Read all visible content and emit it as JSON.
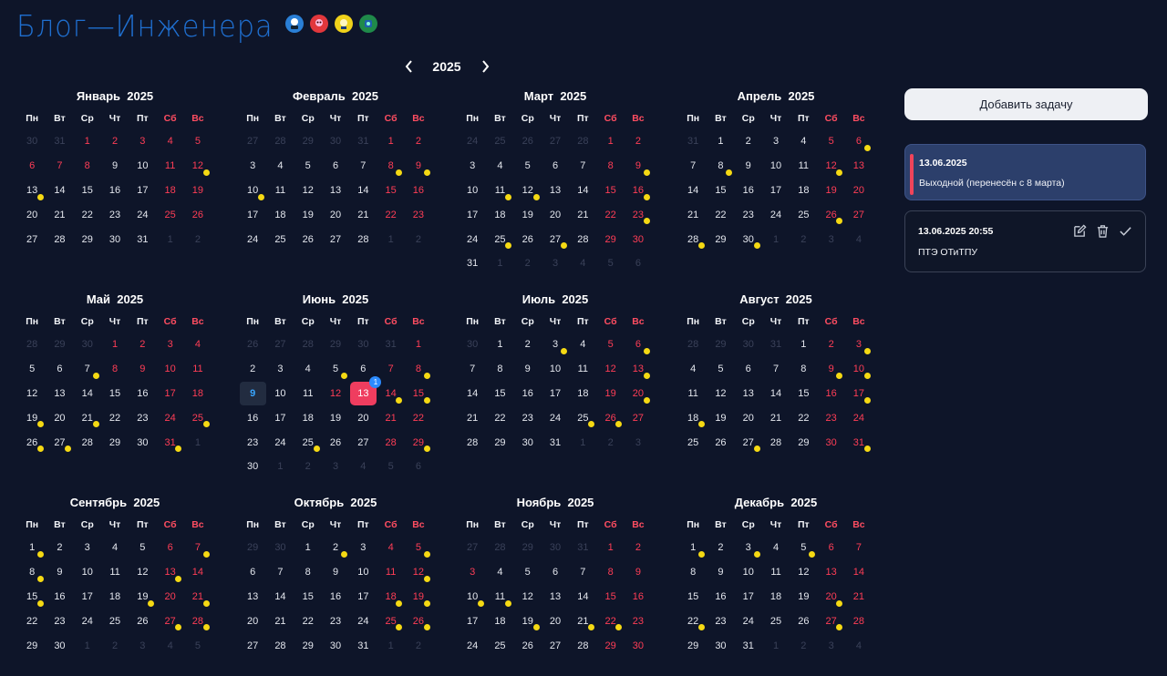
{
  "brand": {
    "title": "Блог—Инженера"
  },
  "year_nav": {
    "year": "2025"
  },
  "weekday_headers": [
    "Пн",
    "Вт",
    "Ср",
    "Чт",
    "Пт",
    "Сб",
    "Вс"
  ],
  "months": [
    {
      "title": "Январь  2025",
      "first_weekday": 2,
      "days": 31,
      "prev_days": 31,
      "dots": [
        12,
        13
      ],
      "extra_holidays": [
        1,
        2,
        3,
        6,
        7,
        8
      ]
    },
    {
      "title": "Февраль  2025",
      "first_weekday": 5,
      "days": 28,
      "prev_days": 31,
      "dots": [
        8,
        9,
        10
      ],
      "extra_holidays": []
    },
    {
      "title": "Март  2025",
      "first_weekday": 5,
      "days": 31,
      "prev_days": 28,
      "dots": [
        9,
        11,
        12,
        16,
        23,
        25,
        27
      ],
      "extra_holidays": []
    },
    {
      "title": "Апрель  2025",
      "first_weekday": 1,
      "days": 30,
      "prev_days": 31,
      "dots": [
        6,
        8,
        12,
        26,
        28,
        30
      ],
      "extra_holidays": []
    },
    {
      "title": "Май  2025",
      "first_weekday": 3,
      "days": 31,
      "prev_days": 30,
      "dots": [
        7,
        19,
        21,
        25,
        26,
        27,
        31
      ],
      "extra_holidays": [
        1,
        2,
        8,
        9
      ]
    },
    {
      "title": "Июнь  2025",
      "first_weekday": 6,
      "days": 30,
      "prev_days": 31,
      "dots": [
        5,
        8,
        14,
        15,
        25,
        29
      ],
      "extra_holidays": [
        12,
        13
      ],
      "today": 9,
      "selected": 13,
      "badges": [
        {
          "day": 13,
          "count": "1"
        }
      ]
    },
    {
      "title": "Июль  2025",
      "first_weekday": 1,
      "days": 31,
      "prev_days": 30,
      "dots": [
        3,
        6,
        13,
        20,
        25,
        26
      ],
      "extra_holidays": []
    },
    {
      "title": "Август  2025",
      "first_weekday": 4,
      "days": 31,
      "prev_days": 31,
      "dots": [
        3,
        9,
        10,
        17,
        18,
        27,
        31
      ],
      "extra_holidays": []
    },
    {
      "title": "Сентябрь  2025",
      "first_weekday": 0,
      "days": 30,
      "prev_days": 31,
      "dots": [
        1,
        7,
        8,
        13,
        15,
        19,
        21,
        27,
        28
      ],
      "extra_holidays": []
    },
    {
      "title": "Октябрь  2025",
      "first_weekday": 2,
      "days": 31,
      "prev_days": 30,
      "dots": [
        2,
        5,
        12,
        18,
        19,
        25,
        26
      ],
      "extra_holidays": []
    },
    {
      "title": "Ноябрь  2025",
      "first_weekday": 5,
      "days": 30,
      "prev_days": 31,
      "dots": [
        10,
        11,
        19,
        21,
        22
      ],
      "extra_holidays": [
        3
      ]
    },
    {
      "title": "Декабрь  2025",
      "first_weekday": 0,
      "days": 31,
      "prev_days": 30,
      "dots": [
        1,
        3,
        5,
        20,
        22,
        27
      ],
      "extra_holidays": []
    }
  ],
  "sidebar": {
    "add_button": "Добавить задачу",
    "tasks": [
      {
        "date": "13.06.2025",
        "text": "Выходной (перенесён с 8 марта)"
      },
      {
        "date": "13.06.2025 20:55",
        "text": "ПТЭ ОТиТПУ"
      }
    ]
  },
  "colors": {
    "background": "#0e1529",
    "weekend": "#ff3d56",
    "dot": "#f5d913",
    "selected": "#ef3d5f",
    "today": "#39a6ff",
    "badge": "#2c8bff",
    "logo": "#1f6fd0"
  },
  "icons": {
    "prev": "chevron-left-icon",
    "next": "chevron-right-icon",
    "edit": "edit-icon",
    "delete": "trash-icon",
    "complete": "check-icon"
  }
}
